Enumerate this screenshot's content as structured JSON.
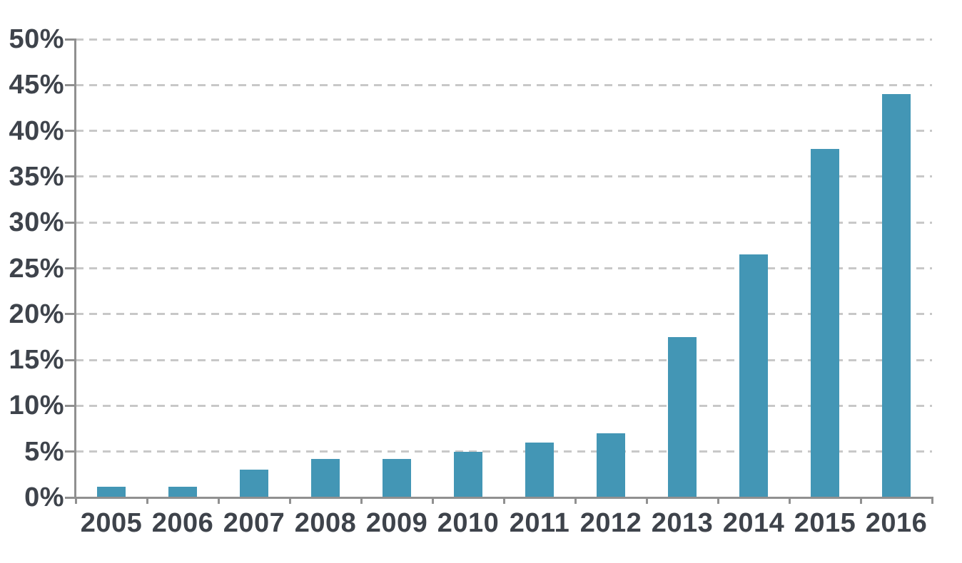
{
  "chart_data": {
    "type": "bar",
    "title": "",
    "categories": [
      "2005",
      "2006",
      "2007",
      "2008",
      "2009",
      "2010",
      "2011",
      "2012",
      "2013",
      "2014",
      "2015",
      "2016"
    ],
    "values": [
      1.2,
      1.2,
      3,
      4.2,
      4.2,
      5,
      6,
      7,
      17.5,
      26.5,
      38,
      44
    ],
    "xlabel": "",
    "ylabel": "",
    "ylim": [
      0,
      50
    ],
    "yticks": [
      0,
      5,
      10,
      15,
      20,
      25,
      30,
      35,
      40,
      45,
      50
    ],
    "ytick_suffix": "%",
    "grid": "horizontal-dashed",
    "legend": "none",
    "bar_color": "#4396b5",
    "axis_color": "#909090",
    "gridline_color": "#c8c8c8",
    "label_color": "#3e434b",
    "background": "#ffffff"
  }
}
